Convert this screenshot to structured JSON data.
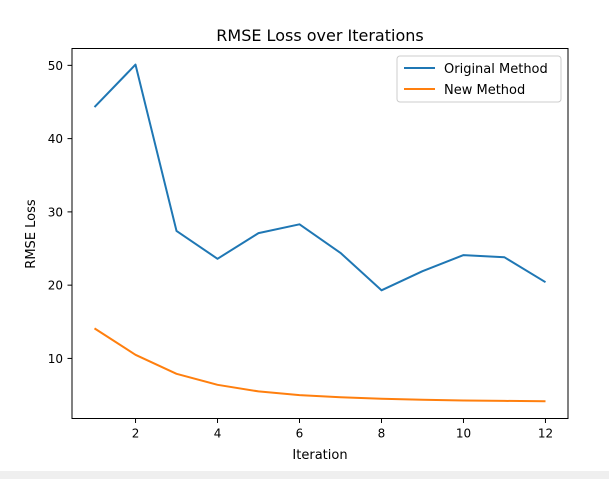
{
  "chart_data": {
    "type": "line",
    "title": "RMSE Loss over Iterations",
    "xlabel": "Iteration",
    "ylabel": "RMSE Loss",
    "xlim": [
      0.45,
      12.55
    ],
    "ylim": [
      1.8,
      52.3
    ],
    "xticks": [
      2,
      4,
      6,
      8,
      10,
      12
    ],
    "yticks": [
      10,
      20,
      30,
      40,
      50
    ],
    "grid": false,
    "legend_position": "top-right",
    "x": [
      1,
      2,
      3,
      4,
      5,
      6,
      7,
      8,
      9,
      10,
      11,
      12
    ],
    "series": [
      {
        "name": "Original Method",
        "color": "#1f77b4",
        "values": [
          44.3,
          50.1,
          27.4,
          23.6,
          27.1,
          28.3,
          24.4,
          19.3,
          21.9,
          24.1,
          23.8,
          20.4
        ]
      },
      {
        "name": "New Method",
        "color": "#ff7f0e",
        "values": [
          14.1,
          10.5,
          7.9,
          6.4,
          5.5,
          5.0,
          4.7,
          4.5,
          4.35,
          4.25,
          4.2,
          4.15
        ]
      }
    ]
  }
}
